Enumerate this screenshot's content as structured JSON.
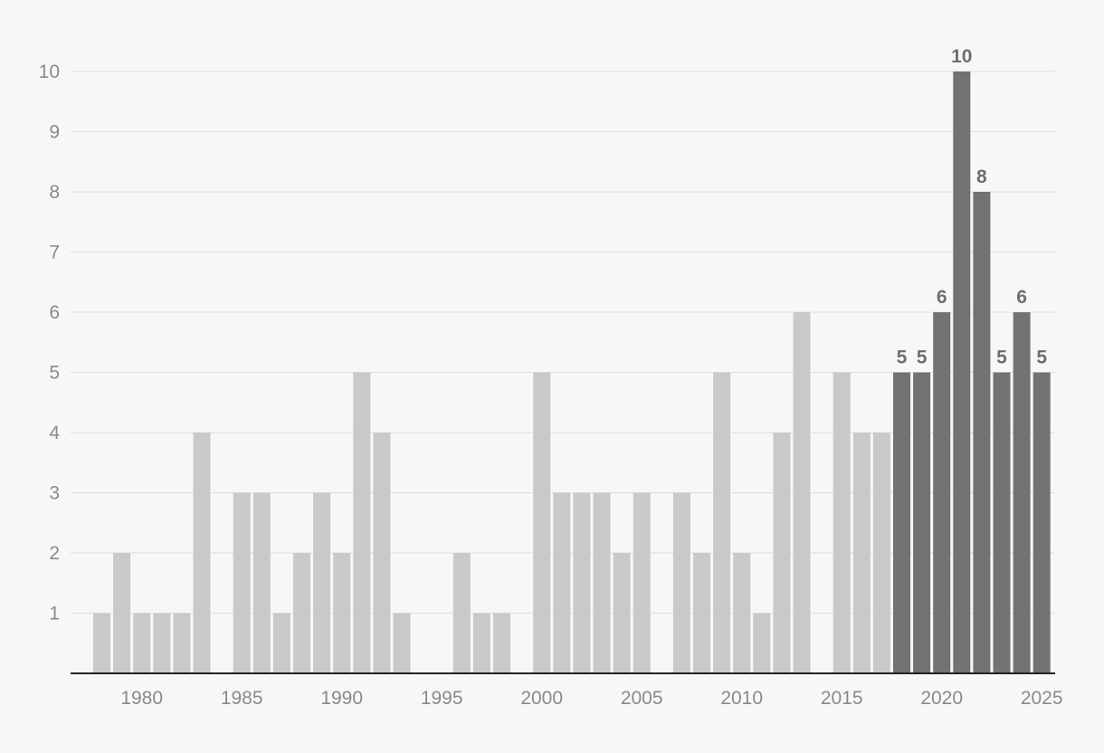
{
  "chart_data": {
    "type": "bar",
    "title": "",
    "xlabel": "",
    "ylabel": "",
    "ylim": [
      0,
      10
    ],
    "y_ticks": [
      1,
      2,
      3,
      4,
      5,
      6,
      7,
      8,
      9,
      10
    ],
    "x_ticks": [
      1980,
      1985,
      1990,
      1995,
      2000,
      2005,
      2010,
      2015,
      2020,
      2025
    ],
    "grid": true,
    "colors": {
      "default_bar": "#c9c9c9",
      "highlight_bar": "#727272",
      "background": "#f7f7f7"
    },
    "highlight_from_year": 2018,
    "categories": [
      1978,
      1979,
      1980,
      1981,
      1982,
      1983,
      1984,
      1985,
      1986,
      1987,
      1988,
      1989,
      1990,
      1991,
      1992,
      1993,
      1994,
      1995,
      1996,
      1997,
      1998,
      1999,
      2000,
      2001,
      2002,
      2003,
      2004,
      2005,
      2006,
      2007,
      2008,
      2009,
      2010,
      2011,
      2012,
      2013,
      2014,
      2015,
      2016,
      2017,
      2018,
      2019,
      2020,
      2021,
      2022,
      2023,
      2024,
      2025
    ],
    "values": [
      1,
      2,
      1,
      1,
      1,
      4,
      0,
      3,
      3,
      1,
      2,
      3,
      2,
      5,
      4,
      1,
      0,
      0,
      2,
      1,
      1,
      0,
      5,
      3,
      3,
      3,
      2,
      3,
      0,
      3,
      2,
      5,
      2,
      1,
      4,
      6,
      0,
      5,
      4,
      4,
      5,
      5,
      6,
      10,
      8,
      5,
      6,
      5
    ],
    "data_labels": {
      "2018": "5",
      "2019": "5",
      "2020": "6",
      "2021": "10",
      "2022": "8",
      "2023": "5",
      "2024": "6",
      "2025": "5"
    }
  }
}
